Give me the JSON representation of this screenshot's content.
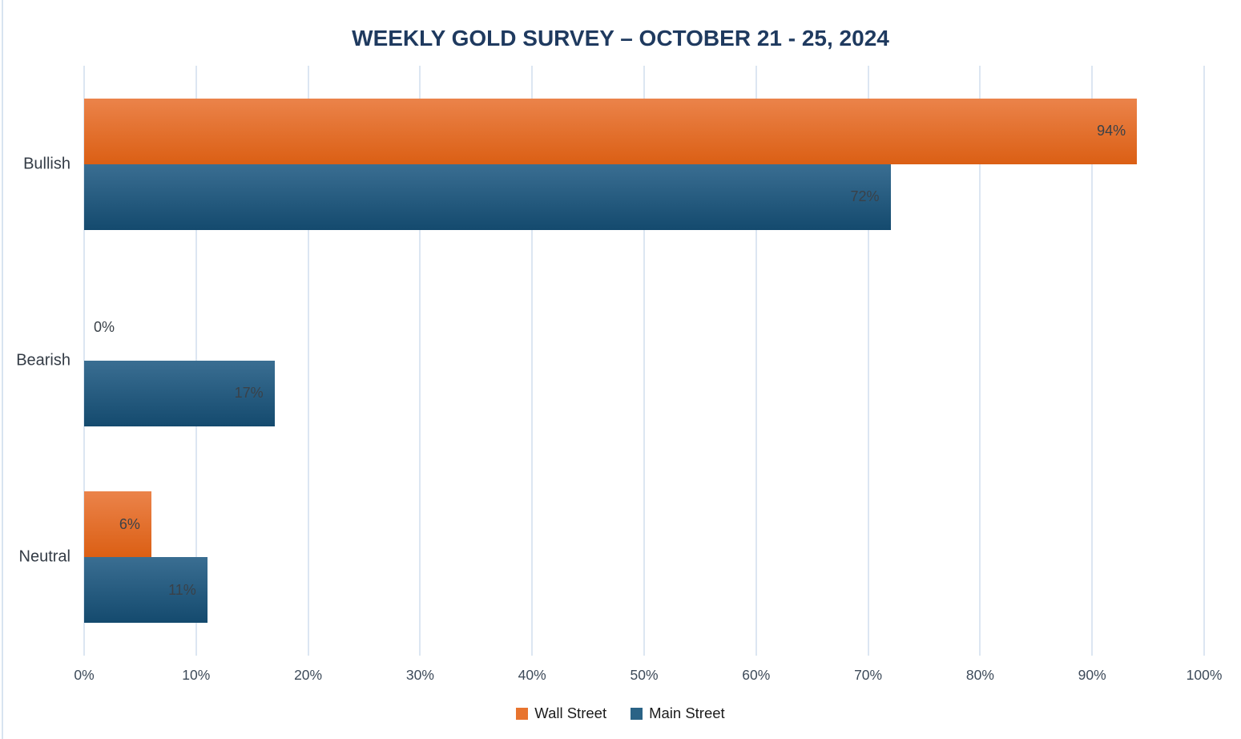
{
  "title": "WEEKLY GOLD SURVEY – OCTOBER 21 - 25, 2024",
  "chart_data": {
    "type": "bar",
    "orientation": "horizontal",
    "title": "WEEKLY GOLD SURVEY – OCTOBER 21 - 25, 2024",
    "categories": [
      "Bullish",
      "Bearish",
      "Neutral"
    ],
    "series": [
      {
        "name": "Wall Street",
        "values": [
          94,
          0,
          6
        ],
        "value_labels": [
          "94%",
          "0%",
          "6%"
        ]
      },
      {
        "name": "Main Street",
        "values": [
          72,
          17,
          11
        ],
        "value_labels": [
          "72%",
          "17%",
          "11%"
        ]
      }
    ],
    "xlabel": "",
    "ylabel": "",
    "xlim": [
      0,
      100
    ],
    "x_ticks": [
      "0%",
      "10%",
      "20%",
      "30%",
      "40%",
      "50%",
      "60%",
      "70%",
      "80%",
      "90%",
      "100%"
    ],
    "grid": "vertical-only",
    "legend_position": "bottom-center"
  },
  "colors": {
    "wall_street_top": "#EB834A",
    "wall_street_bottom": "#DB5F14",
    "wall_street_legend": "#E8742E",
    "main_street_top": "#3A6E92",
    "main_street_bottom": "#144A6E",
    "main_street_legend": "#2A6386",
    "gridline": "#DCE6F2",
    "title_text": "#1F3A5F",
    "axis_text": "#3D4A59",
    "category_text": "#333B45",
    "value_text": "#3A4148",
    "left_edge_line": "#D8E4F0"
  }
}
